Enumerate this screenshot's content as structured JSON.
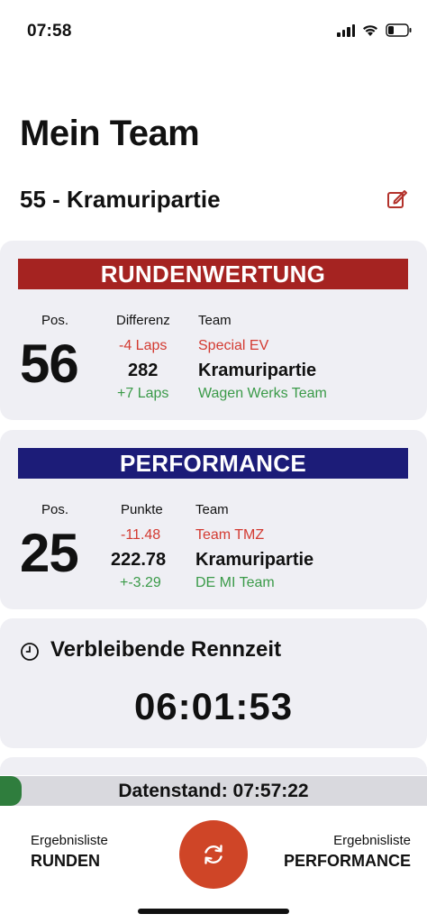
{
  "status_bar": {
    "time": "07:58"
  },
  "header": {
    "title": "Mein Team",
    "team": "55 - Kramuripartie"
  },
  "runden": {
    "banner": "RUNDENWERTUNG",
    "pos_label": "Pos.",
    "pos_value": "56",
    "diff_label": "Differenz",
    "team_label": "Team",
    "ahead_diff": "-4 Laps",
    "value": "282",
    "behind_diff": "+7 Laps",
    "ahead_team": "Special EV",
    "own_team": "Kramuripartie",
    "behind_team": "Wagen Werks Team"
  },
  "performance": {
    "banner": "PERFORMANCE",
    "pos_label": "Pos.",
    "pos_value": "25",
    "diff_label": "Punkte",
    "team_label": "Team",
    "ahead_diff": "-11.48",
    "value": "222.78",
    "behind_diff": "+-3.29",
    "ahead_team": "Team TMZ",
    "own_team": "Kramuripartie",
    "behind_team": "DE MI Team"
  },
  "remaining": {
    "label": "Verbleibende Rennzeit",
    "value": "06:01:53"
  },
  "data_status": {
    "text": "Datenstand: 07:57:22",
    "progress": 0.05
  },
  "nav": {
    "left_small": "Ergebnisliste",
    "left_big": "RUNDEN",
    "right_small": "Ergebnisliste",
    "right_big": "PERFORMANCE"
  },
  "colors": {
    "runden_banner": "#a52321",
    "performance_banner": "#1c1c78",
    "ahead": "#d33a31",
    "behind": "#3a9a48",
    "refresh_button": "#cf4527",
    "progress_fill": "#2f7d3d"
  },
  "icons": {
    "edit": "edit-icon",
    "clock": "clock-icon",
    "refresh": "refresh-icon",
    "signal": "signal-icon",
    "wifi": "wifi-icon",
    "battery": "battery-icon"
  }
}
